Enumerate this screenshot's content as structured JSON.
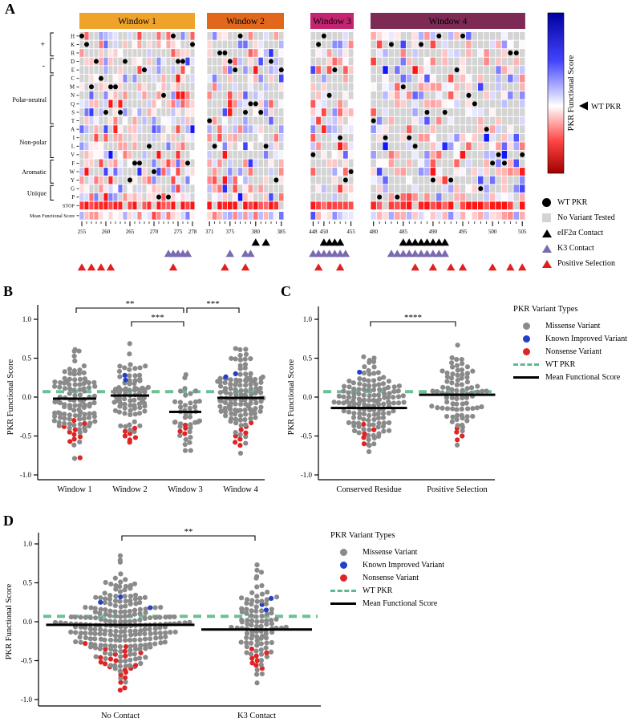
{
  "panels": {
    "a": "A",
    "b": "B",
    "c": "C",
    "d": "D"
  },
  "heatmap_legend": [
    {
      "label": "WT PKR",
      "marker": "black-circle"
    },
    {
      "label": "No Variant Tested",
      "marker": "gray-square"
    },
    {
      "label": "eIF2α Contact",
      "marker": "black-triangle"
    },
    {
      "label": "K3 Contact",
      "marker": "purple-triangle"
    },
    {
      "label": "Positive Selection",
      "marker": "red-triangle"
    }
  ],
  "variant_legend": {
    "title": "PKR Variant Types",
    "items": [
      {
        "label": "Missense Variant",
        "marker": "dot",
        "color": "#8a8a8a"
      },
      {
        "label": "Known Improved Variant",
        "marker": "dot",
        "color": "#2340c8"
      },
      {
        "label": "Nonsense Variant",
        "marker": "dot",
        "color": "#e02424"
      },
      {
        "label": "WT PKR",
        "marker": "dashed-line",
        "color": "#5dba8c"
      },
      {
        "label": "Mean Functional Score",
        "marker": "solid-line",
        "color": "#000000"
      }
    ]
  },
  "chart_data": [
    {
      "id": "panel-a",
      "type": "heatmap",
      "row_labels": [
        "H",
        "K",
        "R",
        "D",
        "E",
        "C",
        "M",
        "N",
        "Q",
        "S",
        "T",
        "A",
        "I",
        "L",
        "V",
        "F",
        "W",
        "Y",
        "G",
        "P",
        "STOP"
      ],
      "bottom_row_label": "Mean Functional Score",
      "row_groups": [
        {
          "label": "+",
          "span": [
            0,
            3
          ]
        },
        {
          "label": "-",
          "span": [
            3,
            5
          ]
        },
        {
          "label": "Polar-neutral",
          "span": [
            5,
            11
          ]
        },
        {
          "label": "Non-polar",
          "span": [
            11,
            15
          ]
        },
        {
          "label": "Aromatic",
          "span": [
            15,
            18
          ]
        },
        {
          "label": "Unique",
          "span": [
            18,
            20
          ]
        }
      ],
      "windows": [
        {
          "label": "Window 1",
          "header_color": "#f0a32b",
          "start": 255,
          "end": 278,
          "ticks": [
            255,
            260,
            265,
            270,
            275,
            278
          ]
        },
        {
          "label": "Window 2",
          "header_color": "#e1671d",
          "start": 371,
          "end": 385,
          "ticks": [
            371,
            375,
            380,
            385
          ]
        },
        {
          "label": "Window 3",
          "header_color": "#c32571",
          "start": 448,
          "end": 455,
          "ticks": [
            448,
            450,
            455
          ]
        },
        {
          "label": "Window 4",
          "header_color": "#7d2a55",
          "start": 480,
          "end": 505,
          "ticks": [
            480,
            485,
            490,
            495,
            500,
            505
          ]
        }
      ],
      "colorbar": {
        "label": "PKR Functional Score",
        "wt_label": "WT PKR",
        "high_color": "#0000a0",
        "low_color": "#a00000"
      },
      "contacts": {
        "eif2a": [
          380,
          382,
          450,
          451,
          452,
          453,
          485,
          486,
          487,
          488,
          489,
          490,
          491,
          492
        ],
        "k3": [
          273,
          274,
          275,
          276,
          277,
          375,
          378,
          379,
          448,
          449,
          450,
          451,
          452,
          453,
          454,
          483,
          484,
          485,
          486,
          487,
          488,
          489,
          490,
          491,
          492
        ],
        "positive_selection": [
          255,
          257,
          259,
          261,
          274,
          374,
          378,
          449,
          453,
          487,
          490,
          493,
          495,
          500,
          503,
          505
        ]
      },
      "k3_color": "#7b6ab0",
      "positive_color": "#e02020",
      "no_variant_color": "#d4d4d4",
      "na_fraction": 0.48,
      "cell_seed": 7
    },
    {
      "id": "panel-b",
      "type": "scatter",
      "subtype": "beeswarm",
      "ylabel": "PKR Functional Score",
      "yticks": [
        1.0,
        0.5,
        0.0,
        -0.5,
        -1.0
      ],
      "ylim": [
        -1.05,
        1.25
      ],
      "wt_score": 0.07,
      "seed": 11,
      "categories": [
        "Window 1",
        "Window 2",
        "Window 3",
        "Window 4"
      ],
      "groups": [
        {
          "label": "Window 1",
          "n": 105,
          "mean": -0.02,
          "sd": 0.27,
          "mean_line": -0.02,
          "blue": [],
          "red": [
            -0.3,
            -0.34,
            -0.38,
            -0.42,
            -0.45,
            -0.48,
            -0.51,
            -0.54,
            -0.57,
            -0.78
          ]
        },
        {
          "label": "Window 2",
          "n": 80,
          "mean": 0.03,
          "sd": 0.21,
          "mean_line": 0.02,
          "blue": [
            0.28,
            0.22
          ],
          "red": [
            -0.4,
            -0.44,
            -0.47,
            -0.5,
            -0.52,
            -0.55,
            -0.58
          ]
        },
        {
          "label": "Window 3",
          "n": 40,
          "mean": -0.16,
          "sd": 0.24,
          "mean_line": -0.19,
          "blue": [],
          "red": [
            -0.36,
            -0.4,
            -0.44,
            -0.47
          ]
        },
        {
          "label": "Window 4",
          "n": 125,
          "mean": 0.0,
          "sd": 0.29,
          "mean_line": -0.01,
          "blue": [
            0.3,
            0.26
          ],
          "red": [
            -0.33,
            -0.38,
            -0.42,
            -0.46,
            -0.5,
            -0.54,
            -0.58,
            -0.62
          ]
        }
      ],
      "significance": [
        {
          "from": 0,
          "to": 2,
          "label": "**",
          "row": 0
        },
        {
          "from": 1,
          "to": 2,
          "label": "***",
          "row": 1
        },
        {
          "from": 2,
          "to": 3,
          "label": "***",
          "row": 0
        }
      ]
    },
    {
      "id": "panel-c",
      "type": "scatter",
      "subtype": "beeswarm",
      "ylabel": "PKR Functional Score",
      "yticks": [
        1.0,
        0.5,
        0.0,
        -0.5,
        -1.0
      ],
      "ylim": [
        -1.05,
        1.25
      ],
      "wt_score": 0.07,
      "seed": 23,
      "categories": [
        "Conserved Residue",
        "Positive Selection"
      ],
      "groups": [
        {
          "label": "Conserved Residue",
          "n": 140,
          "mean": -0.1,
          "sd": 0.28,
          "mean_line": -0.14,
          "blue": [
            0.32
          ],
          "red": [
            -0.35,
            -0.42,
            -0.47,
            -0.52,
            -0.6
          ]
        },
        {
          "label": "Positive Selection",
          "n": 85,
          "mean": 0.03,
          "sd": 0.22,
          "mean_line": 0.03,
          "blue": [],
          "red": [
            -0.4,
            -0.45,
            -0.5,
            -0.55
          ]
        }
      ],
      "significance": [
        {
          "from": 0,
          "to": 1,
          "label": "****",
          "row": 1
        }
      ]
    },
    {
      "id": "panel-d",
      "type": "scatter",
      "subtype": "beeswarm",
      "ylabel": "PKR Functional Score",
      "yticks": [
        1.0,
        0.5,
        0.0,
        -0.5,
        -1.0
      ],
      "ylim": [
        -1.05,
        1.25
      ],
      "wt_score": 0.07,
      "seed": 37,
      "categories": [
        "No Contact",
        "K3 Contact"
      ],
      "groups": [
        {
          "label": "No Contact",
          "n": 230,
          "mean": -0.02,
          "sd": 0.28,
          "mean_line": -0.04,
          "blue": [
            0.18,
            0.25,
            0.32
          ],
          "red": [
            -0.28,
            -0.32,
            -0.35,
            -0.38,
            -0.4,
            -0.42,
            -0.44,
            -0.46,
            -0.48,
            -0.5,
            -0.52,
            -0.54,
            -0.56,
            -0.58,
            -0.6,
            -0.62,
            -0.65,
            -0.68,
            -0.72,
            -0.78,
            -0.85,
            -0.88
          ]
        },
        {
          "label": "K3 Contact",
          "n": 95,
          "mean": -0.05,
          "sd": 0.26,
          "mean_line": -0.1,
          "blue": [
            0.15,
            0.22,
            0.3
          ],
          "red": [
            -0.35,
            -0.4,
            -0.44,
            -0.47,
            -0.5,
            -0.53,
            -0.56,
            -0.6
          ]
        }
      ],
      "significance": [
        {
          "from": 0,
          "to": 1,
          "label": "**",
          "row": 0
        }
      ]
    }
  ]
}
